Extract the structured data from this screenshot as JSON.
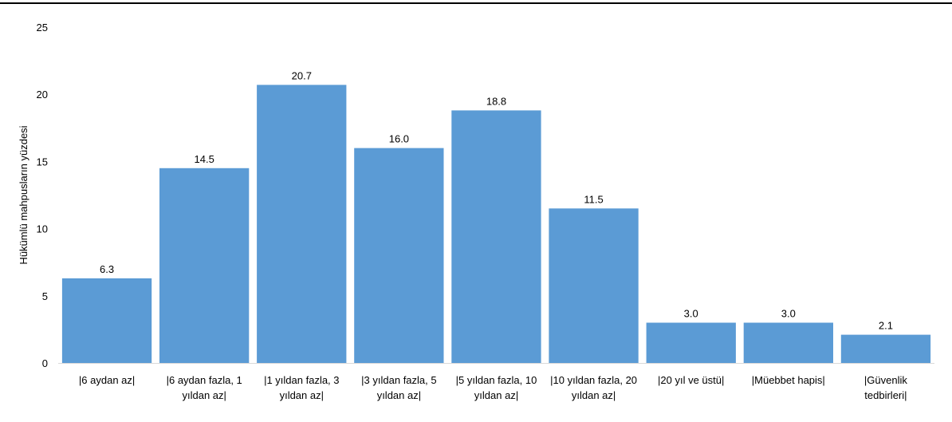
{
  "chart_data": {
    "type": "bar",
    "title": "",
    "xlabel": "",
    "ylabel": "Hükümlü mahpusların yüzdesi",
    "ylim": [
      0,
      25
    ],
    "yticks": [
      0,
      5,
      10,
      15,
      20,
      25
    ],
    "grid": false,
    "bar_color": "#5b9bd5",
    "categories": [
      [
        "|6 aydan az|"
      ],
      [
        "|6 aydan fazla, 1",
        "yıldan az|"
      ],
      [
        "|1 yıldan fazla, 3",
        "yıldan az|"
      ],
      [
        "|3 yıldan fazla, 5",
        "yıldan az|"
      ],
      [
        "|5 yıldan fazla, 10",
        "yıldan az|"
      ],
      [
        "|10 yıldan fazla, 20",
        "yıldan az|"
      ],
      [
        "|20 yıl ve üstü|"
      ],
      [
        "|Müebbet hapis|"
      ],
      [
        "|Güvenlik",
        "tedbirleri|"
      ]
    ],
    "values": [
      6.3,
      14.5,
      20.7,
      16.0,
      18.8,
      11.5,
      3.0,
      3.0,
      2.1
    ],
    "data_labels": [
      "6.3",
      "14.5",
      "20.7",
      "16.0",
      "18.8",
      "11.5",
      "3.0",
      "3.0",
      "2.1"
    ]
  }
}
